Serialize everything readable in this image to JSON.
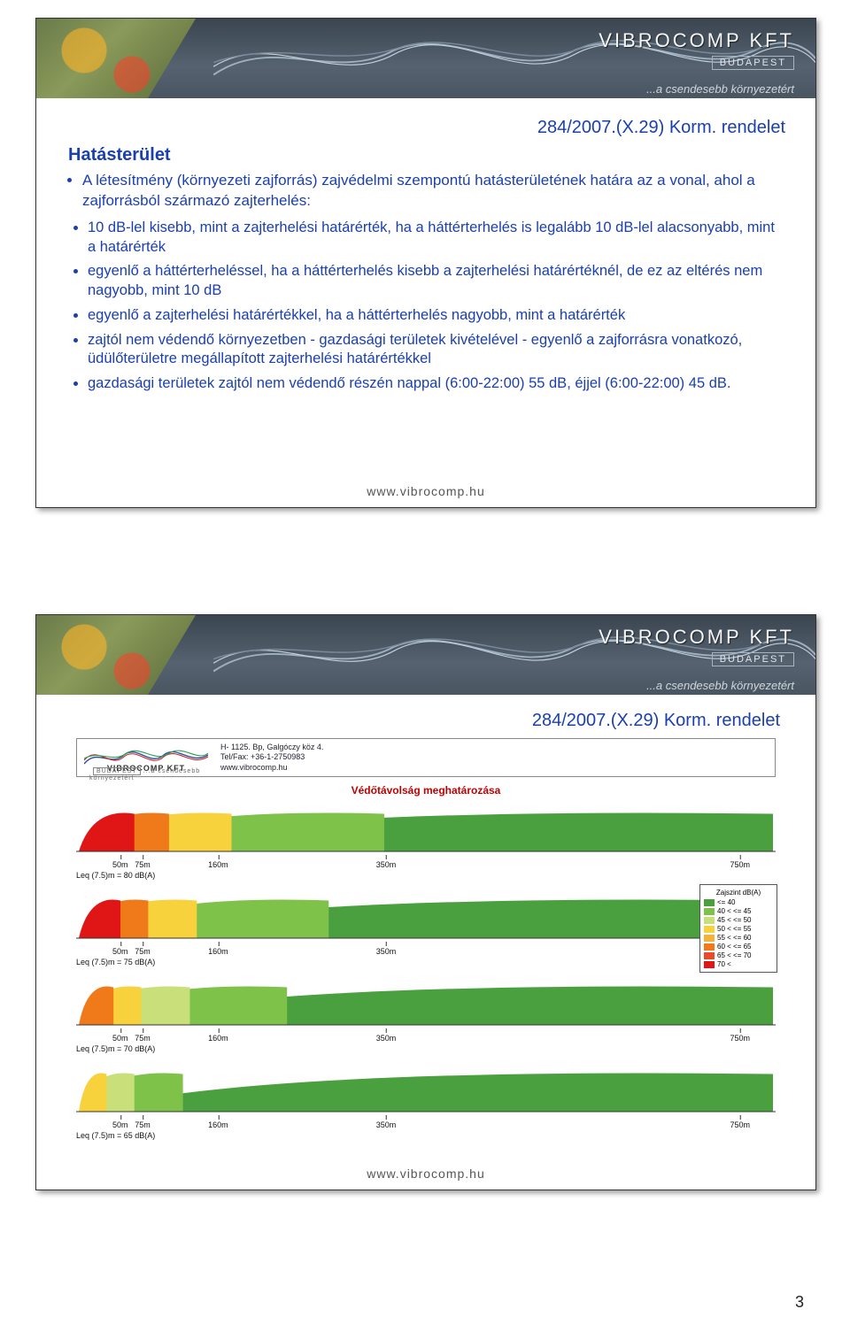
{
  "company": {
    "name": "VIBROCOMP KFT",
    "city": "BUDAPEST",
    "slogan": "...a csendesebb környezetért"
  },
  "footer_url": "www.vibrocomp.hu",
  "page_number": "3",
  "regulation_ref": "284/2007.(X.29) Korm. rendelet",
  "slide1": {
    "section_title": "Hatásterület",
    "intro": "A létesítmény (környezeti zajforrás) zajvédelmi szempontú hatásterületének határa az a vonal, ahol a zajforrásból származó zajterhelés:",
    "sub_bullets": [
      "10 dB-lel kisebb, mint a zajterhelési határérték, ha a háttérterhelés is legalább 10 dB-lel alacsonyabb, mint a határérték",
      "egyenlő a háttérterheléssel, ha a háttérterhelés kisebb a zajterhelési határértéknél, de ez az eltérés nem nagyobb, mint 10 dB",
      "egyenlő a zajterhelési határértékkel, ha a háttérterhelés nagyobb, mint a határérték",
      "zajtól nem védendő környezetben - gazdasági területek kivételével - egyenlő a zajforrásra vonatkozó, üdülőterületre megállapított zajterhelési határértékkel",
      "gazdasági területek zajtól nem védendő részén nappal (6:00-22:00) 55 dB, éjjel (6:00-22:00) 45 dB."
    ]
  },
  "slide2": {
    "diagram_header": {
      "company": "VIBROCOMP KFT",
      "city": "BUDAPEST",
      "slogan": "...a csendesebb környezetért",
      "contact_line1": "H- 1125. Bp, Galgóczy köz 4.",
      "contact_line2": "Tel/Fax: +36-1-2750983",
      "contact_line3": "www.vibrocomp.hu"
    },
    "diagram_title": "Védőtávolság meghatározása",
    "x_ticks": [
      {
        "pos_pct": 6.3,
        "label": "50m"
      },
      {
        "pos_pct": 9.5,
        "label": "75m"
      },
      {
        "pos_pct": 20.3,
        "label": "160m"
      },
      {
        "pos_pct": 44.3,
        "label": "350m"
      },
      {
        "pos_pct": 94.9,
        "label": "750m"
      }
    ],
    "panels": [
      {
        "leq": "Leq (7.5)m = 80 dB(A)",
        "bands": [
          {
            "end_pct": 8,
            "color": "#e01515"
          },
          {
            "end_pct": 13,
            "color": "#f07a1a"
          },
          {
            "end_pct": 22,
            "color": "#f7d23c"
          },
          {
            "end_pct": 44,
            "color": "#7fc24a"
          },
          {
            "end_pct": 100,
            "color": "#4aa03f"
          }
        ]
      },
      {
        "leq": "Leq (7.5)m = 75 dB(A)",
        "bands": [
          {
            "end_pct": 6,
            "color": "#e01515"
          },
          {
            "end_pct": 10,
            "color": "#f07a1a"
          },
          {
            "end_pct": 17,
            "color": "#f7d23c"
          },
          {
            "end_pct": 36,
            "color": "#7fc24a"
          },
          {
            "end_pct": 100,
            "color": "#4aa03f"
          }
        ]
      },
      {
        "leq": "Leq (7.5)m = 70 dB(A)",
        "bands": [
          {
            "end_pct": 5,
            "color": "#f07a1a"
          },
          {
            "end_pct": 9,
            "color": "#f7d23c"
          },
          {
            "end_pct": 16,
            "color": "#c9e07a"
          },
          {
            "end_pct": 30,
            "color": "#7fc24a"
          },
          {
            "end_pct": 100,
            "color": "#4aa03f"
          }
        ]
      },
      {
        "leq": "Leq (7.5)m = 65 dB(A)",
        "bands": [
          {
            "end_pct": 4,
            "color": "#f7d23c"
          },
          {
            "end_pct": 8,
            "color": "#c9e07a"
          },
          {
            "end_pct": 15,
            "color": "#7fc24a"
          },
          {
            "end_pct": 100,
            "color": "#4aa03f"
          }
        ]
      }
    ],
    "legend": {
      "title": "Zajszint dB(A)",
      "rows": [
        {
          "color": "#4aa03f",
          "label": "<= 40"
        },
        {
          "color": "#7fc24a",
          "label": "40 < <= 45"
        },
        {
          "color": "#c9e07a",
          "label": "45 < <= 50"
        },
        {
          "color": "#f7d23c",
          "label": "50 < <= 55"
        },
        {
          "color": "#f2b23c",
          "label": "55 < <= 60"
        },
        {
          "color": "#f07a1a",
          "label": "60 < <= 65"
        },
        {
          "color": "#e84a2a",
          "label": "65 < <= 70"
        },
        {
          "color": "#e01515",
          "label": "70 <"
        }
      ]
    }
  },
  "colors": {
    "link_blue": "#1a3fb0",
    "header_bg": "#4a5562"
  }
}
